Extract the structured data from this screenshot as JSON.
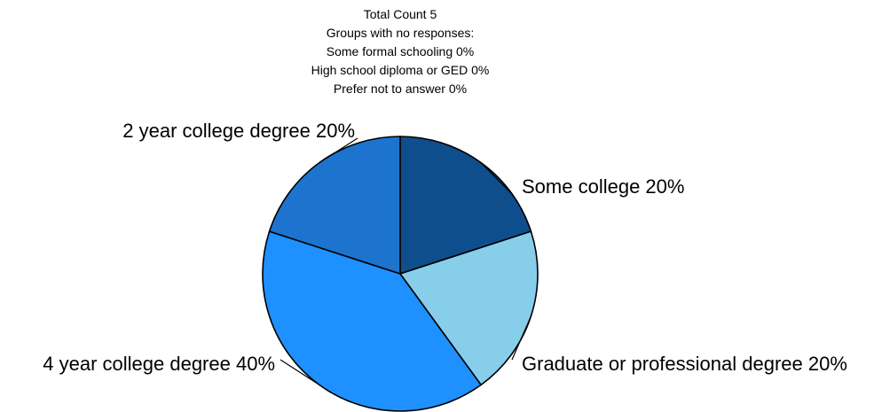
{
  "chart_data": {
    "type": "pie",
    "header_lines": [
      "Total Count  5",
      "Groups with no responses:",
      "Some formal schooling 0%",
      "High school diploma or GED 0%",
      "Prefer not to answer 0%"
    ],
    "slices": [
      {
        "label": "Some college 20%",
        "category": "Some college",
        "value": 20,
        "color": "#0F4E8C"
      },
      {
        "label": "Graduate or professional degree 20%",
        "category": "Graduate or professional degree",
        "value": 20,
        "color": "#87CEEB"
      },
      {
        "label": "4 year college degree 40%",
        "category": "4 year college degree",
        "value": 40,
        "color": "#1E90FF"
      },
      {
        "label": "2 year college degree 20%",
        "category": "2 year college degree",
        "value": 20,
        "color": "#1C74CF"
      }
    ]
  }
}
